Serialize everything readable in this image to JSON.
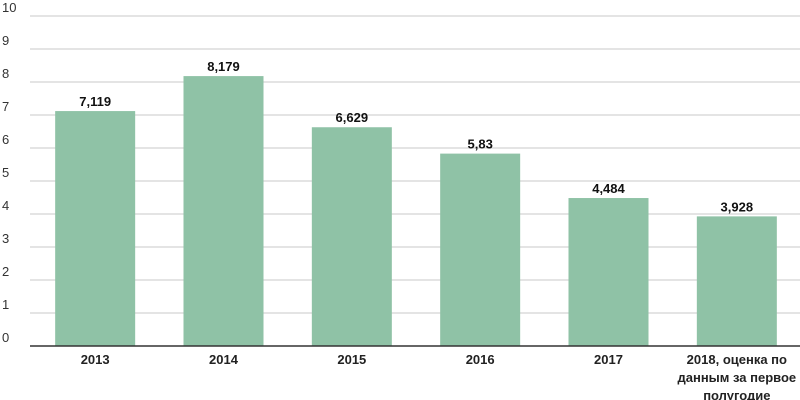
{
  "chart_data": {
    "type": "bar",
    "title": "",
    "xlabel": "",
    "ylabel": "",
    "ylim": [
      0,
      10
    ],
    "yticks": [
      0,
      1,
      2,
      3,
      4,
      5,
      6,
      7,
      8,
      9,
      10
    ],
    "grid": true,
    "categories": [
      [
        "2013"
      ],
      [
        "2014"
      ],
      [
        "2015"
      ],
      [
        "2016"
      ],
      [
        "2017"
      ],
      [
        "2018, оценка по",
        "данным за первое",
        "полугодие"
      ]
    ],
    "values": [
      7.119,
      8.179,
      6.629,
      5.83,
      4.484,
      3.928
    ],
    "data_labels": [
      "7,119",
      "8,179",
      "6,629",
      "5,83",
      "4,484",
      "3,928"
    ],
    "bar_color": "#8fc2a6"
  }
}
